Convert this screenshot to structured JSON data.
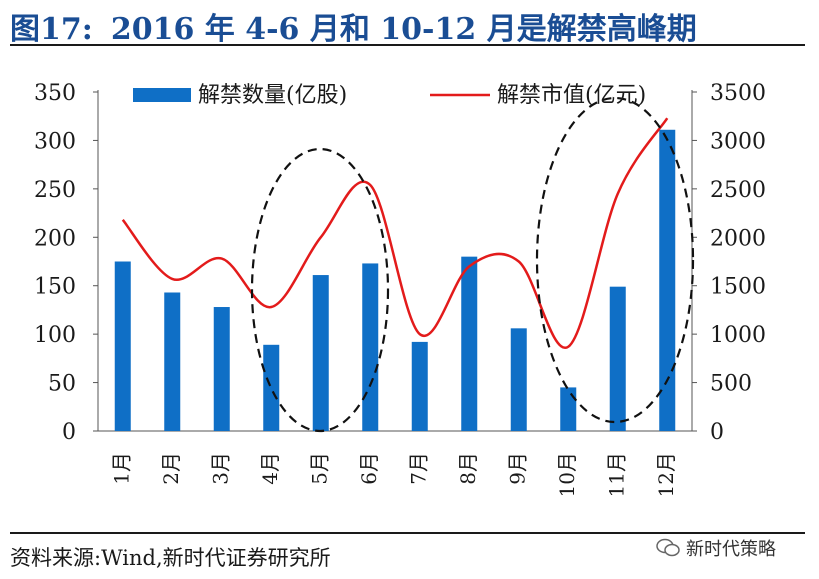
{
  "header": {
    "figure_label": "图17:",
    "title": "2016 年 4-6 月和 10-12 月是解禁高峰期"
  },
  "source": "资料来源:Wind,新时代证券研究所",
  "watermark": "新时代策略",
  "colors": {
    "bar": "#0f6fc6",
    "line": "#e31b1b",
    "title": "#1a4d94"
  },
  "chart_data": {
    "type": "bar+line",
    "categories": [
      "1月",
      "2月",
      "3月",
      "4月",
      "5月",
      "6月",
      "7月",
      "8月",
      "9月",
      "10月",
      "11月",
      "12月"
    ],
    "series": [
      {
        "name": "解禁数量(亿股)",
        "type": "bar",
        "axis": "left",
        "values": [
          175,
          143,
          128,
          89,
          161,
          173,
          92,
          180,
          106,
          45,
          149,
          311
        ]
      },
      {
        "name": "解禁市值(亿元)",
        "type": "line",
        "axis": "right",
        "values": [
          2180,
          1570,
          1780,
          1280,
          2000,
          2540,
          1000,
          1700,
          1750,
          870,
          2450,
          3230
        ]
      }
    ],
    "left_axis": {
      "ylim": [
        0,
        350
      ],
      "ticks": [
        "0",
        "50",
        "100",
        "150",
        "200",
        "250",
        "300",
        "350"
      ]
    },
    "right_axis": {
      "ylim": [
        0,
        3500
      ],
      "ticks": [
        "0",
        "500",
        "1000",
        "1500",
        "2000",
        "2500",
        "3000",
        "3500"
      ]
    },
    "legend": "top",
    "highlights": [
      "4月-6月",
      "10月-12月"
    ]
  }
}
